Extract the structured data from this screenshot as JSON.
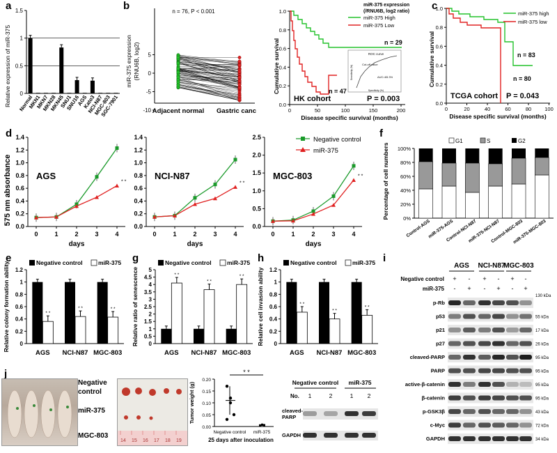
{
  "labels": {
    "a": "a",
    "b": "b",
    "c": "c",
    "d": "d",
    "e": "e",
    "f": "f",
    "g": "g",
    "h": "h",
    "i": "i",
    "j": "j"
  },
  "panel_a": {
    "ylabel": "Relative expression of miR-375",
    "yticks": [
      "0",
      "0.5",
      "1",
      "1.5"
    ],
    "categories": [
      "Normal",
      "MKN1",
      "MKN7",
      "MKN28",
      "MKN45",
      "SNU1",
      "SNU16",
      "AGS",
      "Kato3",
      "NCI-N87",
      "MGC-803",
      "SGC-7901"
    ],
    "values": [
      1.0,
      0.01,
      0.01,
      0.01,
      0.83,
      0.01,
      0.24,
      0.01,
      0.23,
      0.01,
      0.01,
      0.01
    ],
    "ylim": [
      0,
      1.5
    ]
  },
  "panel_b_left": {
    "ylabel1": "miR-375 expression",
    "ylabel2": "(RNU6B, log2)",
    "annotation": "n = 76, P < 0.001",
    "yticks": [
      "-10",
      "-5",
      "0",
      "5"
    ],
    "xcats": [
      "Adjacent normal",
      "Gastric cancer"
    ]
  },
  "panel_b_right": {
    "ylabel": "Cumulative survival",
    "xlabel": "Disease specific survival (months)",
    "xticks": [
      "0",
      "50",
      "100",
      "150",
      "200"
    ],
    "yticks": [
      "0.0",
      "0.2",
      "0.4",
      "0.6",
      "0.8",
      "1.0"
    ],
    "legend_title1": "miR-375 expression",
    "legend_title2": "(/RNU6B, log2 ratio)",
    "legend": [
      "miR-375 High",
      "miR-375 Low"
    ],
    "n_high": "n = 29",
    "n_low": "n = 47",
    "cohort": "HK cohort",
    "p": "P = 0.003",
    "inset_title": "ROC curve",
    "inset_cut": "Cut-off value",
    "inset_auc": "AUC=65.3%",
    "inset_xlabel": "Specificity (%)",
    "inset_ylabel": "Sensitivity (%)"
  },
  "panel_c": {
    "ylabel": "Cumulative survival",
    "xlabel": "Disease specific survival (months)",
    "xticks": [
      "0",
      "20",
      "40",
      "60",
      "80",
      "100"
    ],
    "yticks": [
      "0.0",
      "0.2",
      "0.4",
      "0.6",
      "0.8",
      "1.0"
    ],
    "legend": [
      "miR-375 high",
      "miR-375 low"
    ],
    "n_high": "n = 83",
    "n_low": "n = 80",
    "cohort": "TCGA cohort",
    "p": "P = 0.043"
  },
  "panel_d": {
    "ylabel": "575 nm absorbance",
    "xlabel": "days",
    "xticks": [
      "0",
      "1",
      "2",
      "3",
      "4"
    ],
    "legend": [
      "Negative control",
      "miR-375"
    ],
    "sig": "* *",
    "charts": [
      {
        "title": "AGS",
        "yticks": [
          "0.0",
          "0.2",
          "0.4",
          "0.6",
          "0.8",
          "1.0",
          "1.2",
          "1.4"
        ],
        "ymax": 1.4,
        "nc": [
          0.14,
          0.15,
          0.35,
          0.78,
          1.23
        ],
        "mir": [
          0.14,
          0.15,
          0.32,
          0.46,
          0.64
        ]
      },
      {
        "title": "NCI-N87",
        "yticks": [
          "0.0",
          "0.2",
          "0.4",
          "0.6",
          "0.8",
          "1.0",
          "1.2",
          "1.4"
        ],
        "ymax": 1.4,
        "nc": [
          0.15,
          0.17,
          0.45,
          0.66,
          1.05
        ],
        "mir": [
          0.15,
          0.17,
          0.35,
          0.44,
          0.62
        ]
      },
      {
        "title": "MGC-803",
        "yticks": [
          "0.0",
          "0.5",
          "1.0",
          "1.5",
          "2.0",
          "2.5"
        ],
        "ymax": 2.5,
        "nc": [
          0.15,
          0.18,
          0.43,
          0.85,
          1.7
        ],
        "mir": [
          0.15,
          0.16,
          0.35,
          0.6,
          1.3
        ]
      }
    ]
  },
  "panel_f": {
    "ylabel": "Percentage of cell numbers",
    "yticks": [
      "0%",
      "20%",
      "40%",
      "60%",
      "80%",
      "100%"
    ],
    "legend": [
      "G1",
      "S",
      "G2"
    ],
    "categories": [
      "Control-AGS",
      "miR-375-AGS",
      "Control-NCI-N87",
      "miR-375-NCI-N87",
      "Control-MGC-803",
      "miR-375-MGC-803"
    ],
    "g1": [
      42,
      46,
      37,
      46,
      49,
      62
    ],
    "s": [
      39,
      33,
      42,
      32,
      37,
      25
    ]
  },
  "panel_e": {
    "ylabel": "Relative colony formation ability",
    "yticks": [
      "0",
      "0.2",
      "0.4",
      "0.6",
      "0.8",
      "1",
      "1.2"
    ],
    "ymax": 1.2,
    "legend": [
      "Negative control",
      "miR-375"
    ],
    "categories": [
      "AGS",
      "NCI-N87",
      "MGC-803"
    ],
    "nc": [
      1,
      1,
      1
    ],
    "mir": [
      0.36,
      0.44,
      0.43
    ],
    "sig": "* *"
  },
  "panel_g": {
    "ylabel": "Relative ratio of senescence",
    "yticks": [
      "0",
      "0.5",
      "1",
      "1.5",
      "2",
      "2.5",
      "3",
      "3.5",
      "4",
      "4.5",
      "5"
    ],
    "ymax": 5,
    "legend": [
      "Negative control",
      "miR-375"
    ],
    "categories": [
      "AGS",
      "NCI-N87",
      "MGC-803"
    ],
    "nc": [
      1,
      1,
      1
    ],
    "mir": [
      4.1,
      3.65,
      4.0
    ],
    "sig": "* *"
  },
  "panel_h": {
    "ylabel": "Relative cell invasion ability",
    "yticks": [
      "0",
      "0.2",
      "0.4",
      "0.6",
      "0.8",
      "1",
      "1.2"
    ],
    "ymax": 1.2,
    "legend": [
      "Negative control",
      "miR-375"
    ],
    "categories": [
      "AGS",
      "NCI-N87",
      "MGC-803"
    ],
    "nc": [
      1,
      1,
      1
    ],
    "mir": [
      0.51,
      0.4,
      0.46
    ],
    "sig": "* *"
  },
  "panel_i": {
    "cells": [
      "AGS",
      "NCI-N87",
      "MGC-803"
    ],
    "row_nc": "Negative control",
    "row_mir": "miR-375",
    "plus": "+",
    "minus": "-",
    "proteins": [
      "p-Rb",
      "p53",
      "p21",
      "p27",
      "cleaved-PARP",
      "PARP",
      "active-β-catenin",
      "β-catenin",
      "p-GSK3β",
      "c-Myc",
      "GAPDH"
    ],
    "sizes": [
      "130 kDa",
      "55 kDa",
      "17 kDa",
      "26 kDa",
      "95 kDa",
      "95 kDa",
      "95 kDa",
      "95 kDa",
      "43 kDa",
      "72 kDa",
      "34 kDa"
    ]
  },
  "panel_j": {
    "mouse_labels": [
      "Negative control",
      "miR-375",
      "MGC-803"
    ],
    "ruler": [
      "14",
      "15",
      "16",
      "17",
      "18",
      "19"
    ],
    "ylabel": "Tumor weight (g)",
    "yticks": [
      "0.00",
      "0.05",
      "0.10",
      "0.15",
      "0.20"
    ],
    "xcats": [
      "Negative control",
      "miR-375"
    ],
    "sig": "* *",
    "caption": "25 days after inoculation",
    "nc_points": [
      0.17,
      0.12,
      0.05,
      0.03,
      0.1
    ],
    "mir_points": [
      0.005,
      0.008,
      0.006,
      0.004,
      0.007
    ],
    "blot_groups": [
      "Negative control",
      "miR-375"
    ],
    "blot_no": "No.",
    "blot_lanes": [
      "1",
      "2",
      "1",
      "2"
    ],
    "blot_rows": [
      "cleaved-\nPARP",
      "GAPDH"
    ],
    "blot_row1a": "cleaved-",
    "blot_row1b": "PARP",
    "blot_row2": "GAPDH",
    "blot_sizes": [
      "95 kDa",
      "34 kDa"
    ]
  },
  "colors": {
    "green": "#1a9a2a",
    "red": "#e02020",
    "lightgreen": "#22c22a",
    "gray": "#999999"
  }
}
